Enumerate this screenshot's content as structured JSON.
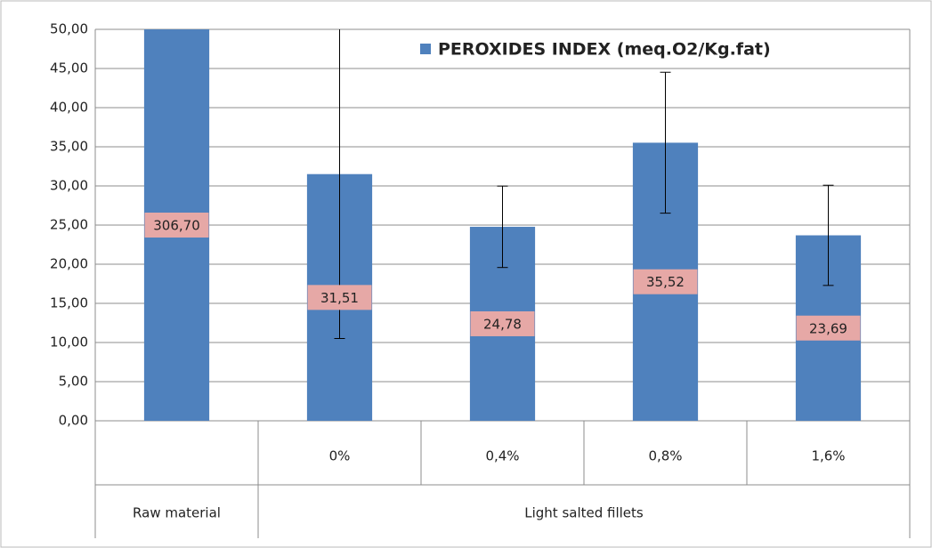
{
  "chart_data": {
    "type": "bar",
    "categories": [
      null,
      "0%",
      "0,4%",
      "0,8%",
      "1,6%"
    ],
    "groups": [
      {
        "label": "Raw material",
        "size": 1
      },
      {
        "label": "Light salted fillets",
        "size": 4
      }
    ],
    "series": [
      {
        "name": "PEROXIDES INDEX (meq.O2/Kg.fat)",
        "color": "#4f81bd",
        "values": [
          306.7,
          31.51,
          24.78,
          35.52,
          23.69
        ],
        "value_labels": [
          "306,70",
          "31,51",
          "24,78",
          "35,52",
          "23,69"
        ],
        "errors": [
          null,
          21,
          5.2,
          9,
          6.4
        ]
      }
    ],
    "ylim": [
      0,
      50
    ],
    "yticks": [
      {
        "value": 0,
        "label": "0,00"
      },
      {
        "value": 5,
        "label": "5,00"
      },
      {
        "value": 10,
        "label": "10,00"
      },
      {
        "value": 15,
        "label": "15,00"
      },
      {
        "value": 20,
        "label": "20,00"
      },
      {
        "value": 25,
        "label": "25,00"
      },
      {
        "value": 30,
        "label": "30,00"
      },
      {
        "value": 35,
        "label": "35,00"
      },
      {
        "value": 40,
        "label": "40,00"
      },
      {
        "value": 45,
        "label": "45,00"
      },
      {
        "value": 50,
        "label": "50,00"
      }
    ],
    "grid": true,
    "legend": "top-right"
  }
}
